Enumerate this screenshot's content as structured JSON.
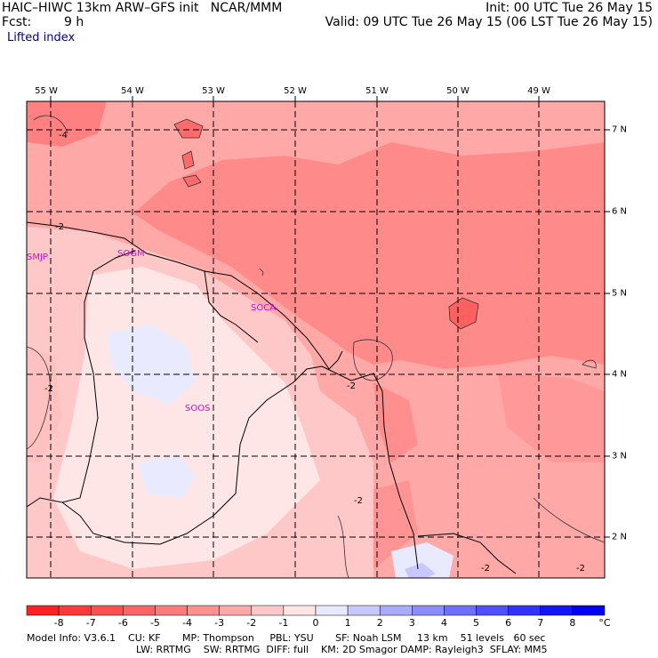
{
  "header": {
    "title_left": "HAIC–HIWC 13km ARW–GFS init   NCAR/MMM",
    "fcst_label": "Fcst:",
    "fcst_value": "9 h",
    "init": "Init: 00 UTC Tue 26 May 15",
    "valid": "Valid: 09 UTC Tue 26 May 15 (06 LST Tue 26 May 15)",
    "field": "Lifted index"
  },
  "map": {
    "lon_labels": [
      "55 W",
      "54 W",
      "53 W",
      "52 W",
      "51 W",
      "50 W",
      "49 W"
    ],
    "lat_labels": [
      "7 N",
      "6 N",
      "5 N",
      "4 N",
      "3 N",
      "2 N"
    ],
    "stations": [
      "SMJP",
      "SOGM",
      "SOCA",
      "SOOS"
    ],
    "contour_labels": [
      "-4",
      "-2",
      "-2",
      "-2",
      "-2",
      "-2",
      "-2",
      "-2"
    ]
  },
  "colorbar": {
    "unit": "°C",
    "labels": [
      "-8",
      "-7",
      "-6",
      "-5",
      "-4",
      "-3",
      "-2",
      "-1",
      "0",
      "1",
      "2",
      "3",
      "4",
      "5",
      "6",
      "7",
      "8"
    ],
    "colors": [
      "#ff2020",
      "#ff3a3a",
      "#ff5050",
      "#ff6464",
      "#ff7a7a",
      "#ff9090",
      "#ffa8a8",
      "#ffc8c8",
      "#ffe6e6",
      "#e8e8ff",
      "#c8c8ff",
      "#aaaaff",
      "#8c8cff",
      "#6e6eff",
      "#5050ff",
      "#3232ff",
      "#1414ff",
      "#0000f0"
    ]
  },
  "footer": {
    "line1": "Model Info: V3.6.1    CU: KF       MP: Thompson     PBL: YSU       SF: Noah LSM     13 km    51 levels   60 sec",
    "line2": "LW: RRTMG    SW: RRTMG  DIFF: full    KM: 2D Smagor DAMP: Rayleigh3  SFLAY: MM5"
  }
}
